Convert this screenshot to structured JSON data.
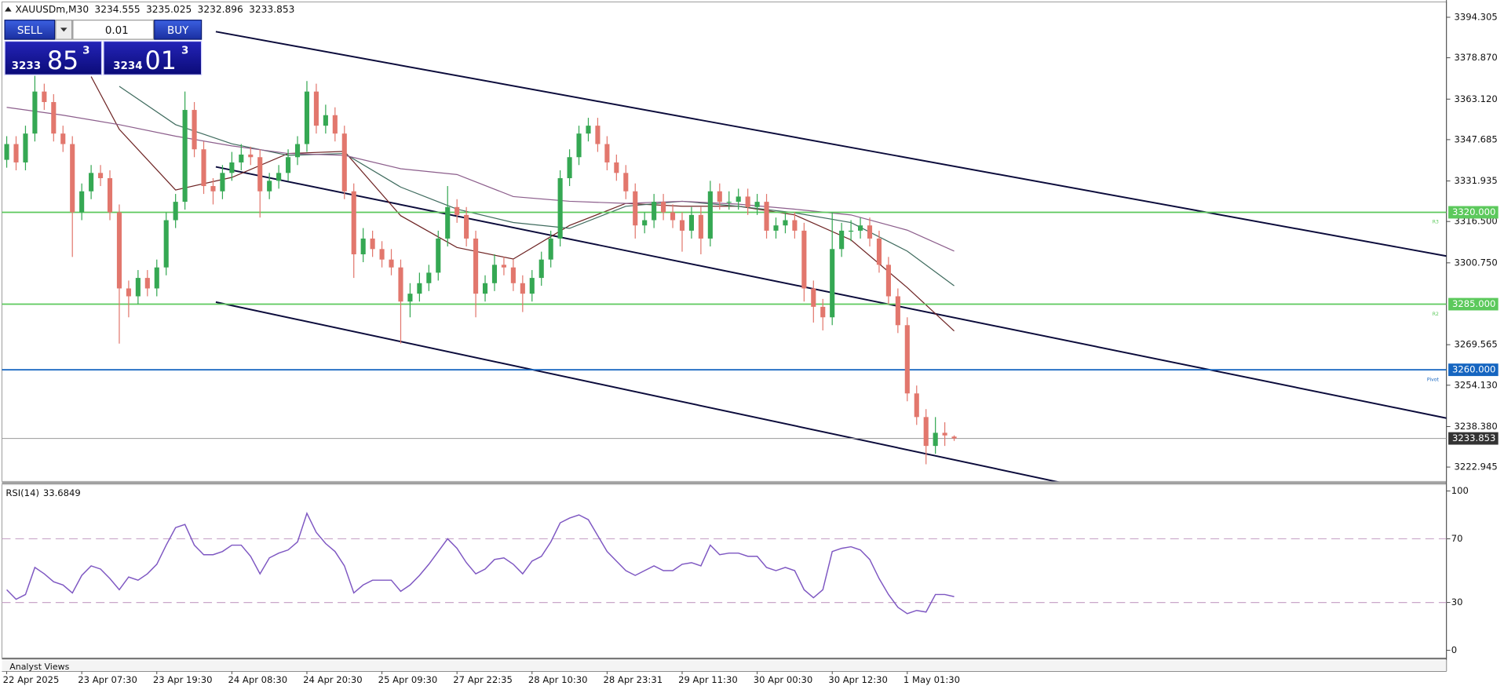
{
  "chart_data": [
    {
      "type": "candlestick",
      "title": "XAUUSDm,M30",
      "categories": [
        "22 Apr 2025",
        null,
        null,
        null,
        null,
        null,
        null,
        null,
        "23 Apr 07:30",
        null,
        null,
        null,
        null,
        null,
        null,
        null,
        "23 Apr 19:30",
        null,
        null,
        null,
        null,
        null,
        null,
        null,
        "24 Apr 08:30",
        null,
        null,
        null,
        null,
        null,
        null,
        null,
        "24 Apr 20:30",
        null,
        null,
        null,
        null,
        null,
        null,
        null,
        "25 Apr 09:30",
        null,
        null,
        null,
        null,
        null,
        null,
        null,
        "27 Apr 22:35",
        null,
        null,
        null,
        null,
        null,
        null,
        null,
        "28 Apr 10:30",
        null,
        null,
        null,
        null,
        null,
        null,
        null,
        "28 Apr 23:31",
        null,
        null,
        null,
        null,
        null,
        null,
        null,
        "29 Apr 11:30",
        null,
        null,
        null,
        null,
        null,
        null,
        null,
        "30 Apr 00:30",
        null,
        null,
        null,
        null,
        null,
        null,
        null,
        "30 Apr 12:30",
        null,
        null,
        null,
        null,
        null,
        null,
        null,
        "1 May 01:30",
        null,
        null,
        null,
        null,
        null
      ],
      "open": [
        3340,
        3346,
        3339,
        3350,
        3366,
        3362,
        3350,
        3346,
        3320,
        3328,
        3335,
        3333,
        3320,
        3291,
        3288,
        3295,
        3291,
        3299,
        3317,
        3324,
        3359,
        3344,
        3330,
        3328,
        3335,
        3339,
        3342,
        3341,
        3328,
        3332,
        3335,
        3341,
        3346,
        3366,
        3353,
        3357,
        3350,
        3328,
        3304,
        3310,
        3306,
        3302,
        3299,
        3286,
        3289,
        3293,
        3297,
        3310,
        3322,
        3319,
        3310,
        3289,
        3293,
        3300,
        3299,
        3293,
        3289,
        3295,
        3302,
        3310,
        3333,
        3341,
        3350,
        3353,
        3346,
        3339,
        3335,
        3328,
        3315,
        3317,
        3324,
        3320,
        3317,
        3313,
        3319,
        3310,
        3328,
        3324,
        3324,
        3326,
        3322,
        3324,
        3313,
        3315,
        3317,
        3313,
        3291,
        3284,
        3280,
        3306,
        3313,
        3313,
        3315,
        3310,
        3300,
        3288,
        3277,
        3251,
        3242,
        3231,
        3236,
        3234.555
      ],
      "high": [
        3349,
        3349,
        3353,
        3372,
        3369,
        3365,
        3353,
        3349,
        3331,
        3338,
        3338,
        3336,
        3323,
        3294,
        3298,
        3298,
        3302,
        3320,
        3327,
        3366,
        3362,
        3347,
        3333,
        3338,
        3343,
        3346,
        3345,
        3344,
        3335,
        3338,
        3344,
        3349,
        3370,
        3369,
        3361,
        3360,
        3353,
        3331,
        3314,
        3313,
        3309,
        3306,
        3302,
        3293,
        3297,
        3300,
        3313,
        3330,
        3325,
        3322,
        3313,
        3296,
        3304,
        3303,
        3302,
        3296,
        3298,
        3305,
        3313,
        3336,
        3344,
        3353,
        3356,
        3356,
        3349,
        3342,
        3338,
        3331,
        3320,
        3327,
        3327,
        3323,
        3320,
        3322,
        3322,
        3332,
        3331,
        3328,
        3329,
        3329,
        3327,
        3327,
        3318,
        3320,
        3320,
        3316,
        3294,
        3287,
        3320,
        3316,
        3317,
        3318,
        3318,
        3313,
        3303,
        3291,
        3280,
        3254,
        3245,
        3242,
        3240,
        3235.025
      ],
      "low": [
        3337,
        3336,
        3336,
        3347,
        3359,
        3347,
        3343,
        3303,
        3317,
        3325,
        3330,
        3317,
        3270,
        3280,
        3285,
        3288,
        3288,
        3296,
        3314,
        3321,
        3341,
        3327,
        3323,
        3325,
        3332,
        3336,
        3338,
        3318,
        3325,
        3329,
        3332,
        3338,
        3343,
        3350,
        3350,
        3347,
        3325,
        3295,
        3301,
        3303,
        3299,
        3296,
        3270,
        3280,
        3286,
        3290,
        3294,
        3307,
        3316,
        3307,
        3280,
        3286,
        3290,
        3296,
        3290,
        3282,
        3286,
        3292,
        3299,
        3307,
        3330,
        3338,
        3347,
        3343,
        3336,
        3332,
        3325,
        3310,
        3312,
        3314,
        3317,
        3314,
        3305,
        3310,
        3304,
        3307,
        3321,
        3321,
        3321,
        3319,
        3319,
        3310,
        3310,
        3312,
        3310,
        3286,
        3278,
        3275,
        3277,
        3303,
        3309,
        3310,
        3307,
        3297,
        3285,
        3274,
        3248,
        3239,
        3224,
        3228,
        3231,
        3232.896
      ],
      "close": [
        3346,
        3339,
        3350,
        3366,
        3362,
        3350,
        3346,
        3320,
        3328,
        3335,
        3333,
        3320,
        3291,
        3288,
        3295,
        3291,
        3299,
        3317,
        3324,
        3359,
        3344,
        3330,
        3328,
        3335,
        3339,
        3342,
        3341,
        3328,
        3332,
        3335,
        3341,
        3346,
        3366,
        3353,
        3357,
        3350,
        3328,
        3304,
        3310,
        3306,
        3302,
        3299,
        3286,
        3289,
        3293,
        3297,
        3310,
        3322,
        3319,
        3310,
        3289,
        3293,
        3300,
        3299,
        3293,
        3289,
        3295,
        3302,
        3310,
        3333,
        3341,
        3350,
        3353,
        3346,
        3339,
        3335,
        3328,
        3315,
        3317,
        3324,
        3320,
        3317,
        3313,
        3319,
        3310,
        3328,
        3324,
        3324,
        3326,
        3322,
        3324,
        3313,
        3315,
        3317,
        3313,
        3291,
        3284,
        3280,
        3306,
        3313,
        3313,
        3315,
        3310,
        3300,
        3288,
        3277,
        3251,
        3242,
        3231,
        3236,
        3235,
        3233.853
      ],
      "bull_color": "#35a853",
      "bear_color": "#e2776d",
      "ylim": [
        3217.47,
        3400.15
      ],
      "yticks": [
        3394.305,
        {
          "value": 3378.87,
          "label": "3378.870"
        },
        {
          "value": 3363.12,
          "label": "3363.120"
        },
        3347.685,
        3331.935,
        {
          "value": 3316.5,
          "label": "3316.500"
        },
        {
          "value": 3300.75,
          "label": "3300.750"
        },
        3269.565,
        {
          "value": 3254.13,
          "label": "3254.130"
        },
        {
          "value": 3238.38,
          "label": "3238.380"
        },
        3222.945
      ],
      "levels": [
        {
          "name": "R3",
          "value": 3320,
          "label": "3320.000",
          "color": "#5cc95c"
        },
        {
          "name": "R2",
          "value": 3285,
          "label": "3285.000",
          "color": "#5cc95c"
        },
        {
          "name": "Pivot",
          "value": 3260,
          "label": "3260.000",
          "color": "#1565c0"
        }
      ],
      "last_price_color": "#333333",
      "moving_averages": [
        {
          "color": "#6e2424",
          "x": [
            9,
            12,
            18,
            24,
            30,
            36,
            42,
            48,
            54,
            60,
            66,
            72,
            78,
            84,
            90,
            96,
            101
          ],
          "values": [
            3371.7,
            3351.6,
            3328.5,
            3333.3,
            3342.4,
            3343.2,
            3318.7,
            3306.6,
            3302.2,
            3315.0,
            3323.4,
            3322.3,
            3322.3,
            3319.0,
            3309.5,
            3291.3,
            3274.8
          ]
        },
        {
          "color": "#3f6b5e",
          "x": [
            12,
            18,
            24,
            30,
            36,
            42,
            48,
            54,
            60,
            66,
            72,
            78,
            84,
            90,
            96,
            101
          ],
          "values": [
            3368.0,
            3353.4,
            3346.1,
            3341.7,
            3342.4,
            3329.6,
            3321.2,
            3316.1,
            3313.9,
            3322.3,
            3324.2,
            3322.3,
            3319.8,
            3316.1,
            3305.2,
            3292.0
          ]
        },
        {
          "color": "#8c5e8c",
          "x": [
            0,
            6,
            12,
            18,
            24,
            30,
            36,
            42,
            48,
            54,
            60,
            66,
            72,
            78,
            84,
            90,
            96,
            101
          ],
          "values": [
            3360.0,
            3357.0,
            3353.4,
            3349.0,
            3345.3,
            3342.4,
            3341.7,
            3336.6,
            3334.4,
            3326.0,
            3324.2,
            3323.4,
            3324.2,
            3323.1,
            3321.2,
            3319.0,
            3313.2,
            3305.2
          ]
        }
      ]
    },
    {
      "type": "line",
      "title": "RSI(14)",
      "color": "#7e57c2",
      "values": [
        38,
        32,
        35,
        52,
        48,
        43,
        41,
        36,
        47,
        53,
        51,
        45,
        38,
        46,
        44,
        48,
        54,
        66,
        77,
        79,
        66,
        60,
        60,
        62,
        66,
        66,
        59,
        48,
        58,
        61,
        63,
        68,
        86,
        74,
        67,
        62,
        53,
        36,
        41,
        44,
        44,
        44,
        37,
        41,
        47,
        54,
        62,
        70,
        64,
        55,
        48,
        51,
        57,
        58,
        54,
        48,
        56,
        59,
        68,
        80,
        83,
        85,
        82,
        72,
        62,
        56,
        50,
        47,
        50,
        53,
        50,
        50,
        54,
        55,
        53,
        66,
        60,
        61,
        61,
        59,
        59,
        52,
        50,
        52,
        50,
        38,
        33,
        38,
        62,
        64,
        65,
        63,
        57,
        45,
        35,
        27,
        23,
        25,
        24,
        35,
        35,
        33.6849
      ],
      "ylim": [
        -4.8,
        104.2
      ],
      "yticks": [
        0,
        30,
        70,
        100
      ],
      "levels": [
        30,
        70
      ],
      "level_color": "#c9a6c9"
    }
  ],
  "trade_panel": {
    "sell": "SELL",
    "buy": "BUY",
    "lot": "0.01",
    "sell_price": {
      "big": "3233",
      "pips": "85",
      "point": "3"
    },
    "buy_price": {
      "big": "3234",
      "pips": "01",
      "point": "3"
    }
  },
  "footer_tab": "Analyst Views"
}
